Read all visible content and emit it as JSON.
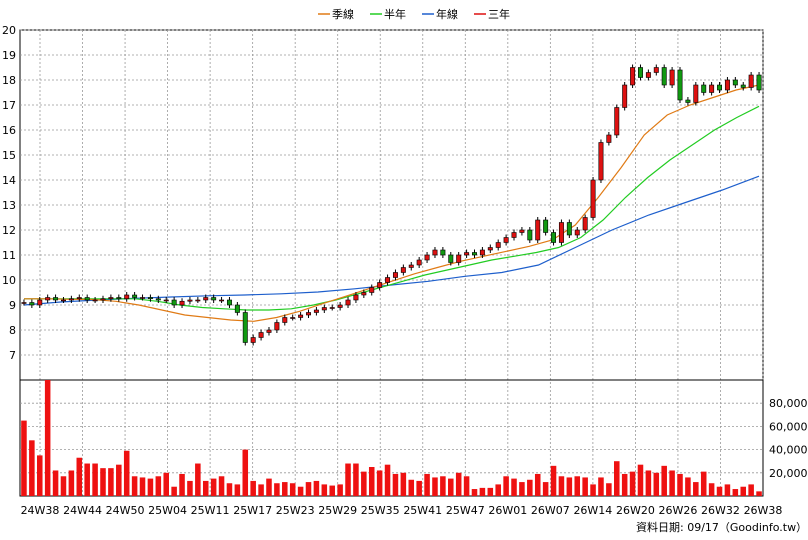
{
  "chart_data": [
    {
      "type": "candlestick",
      "legend": [
        {
          "name": "季線",
          "color": "#E07B16"
        },
        {
          "name": "半年",
          "color": "#22CC22"
        },
        {
          "name": "年線",
          "color": "#1E5FCC"
        },
        {
          "name": "三年",
          "color": "#DD1111"
        }
      ],
      "ylim": [
        6,
        20
      ],
      "yticks": [
        7,
        8,
        9,
        10,
        11,
        12,
        13,
        14,
        15,
        16,
        17,
        18,
        19,
        20
      ],
      "xticks": [
        "24W38",
        "24W44",
        "24W50",
        "25W04",
        "25W11",
        "25W17",
        "25W23",
        "25W29",
        "25W35",
        "25W41",
        "25W47",
        "26W01",
        "26W07",
        "26W14",
        "26W20",
        "26W26",
        "26W32",
        "26W38"
      ],
      "grid": true,
      "close": [
        9.1,
        9.0,
        9.2,
        9.3,
        9.2,
        9.2,
        9.25,
        9.3,
        9.2,
        9.2,
        9.25,
        9.3,
        9.25,
        9.4,
        9.3,
        9.3,
        9.25,
        9.2,
        9.2,
        9.0,
        9.15,
        9.2,
        9.2,
        9.3,
        9.2,
        9.2,
        9.0,
        8.7,
        7.5,
        7.7,
        7.9,
        8.0,
        8.3,
        8.5,
        8.5,
        8.6,
        8.7,
        8.8,
        8.9,
        8.9,
        9.0,
        9.2,
        9.4,
        9.5,
        9.7,
        9.9,
        10.1,
        10.3,
        10.5,
        10.6,
        10.8,
        11.0,
        11.2,
        11.0,
        10.7,
        11.0,
        11.1,
        11.0,
        11.2,
        11.3,
        11.5,
        11.7,
        11.9,
        12.0,
        11.6,
        12.4,
        11.9,
        11.5,
        12.3,
        11.8,
        12.0,
        12.5,
        14.0,
        15.5,
        15.8,
        16.9,
        17.8,
        18.5,
        18.1,
        18.3,
        18.5,
        17.8,
        18.4,
        17.2,
        17.1,
        17.8,
        17.5,
        17.8,
        17.6,
        18.0,
        17.8,
        17.7,
        18.2,
        17.6
      ],
      "volume": [
        65000,
        48000,
        35000,
        100000,
        22000,
        17000,
        22000,
        33000,
        28000,
        28000,
        24000,
        24000,
        27000,
        39000,
        17000,
        16000,
        15000,
        17000,
        20000,
        8000,
        19000,
        13000,
        28000,
        13000,
        15000,
        17000,
        11000,
        10000,
        40000,
        13000,
        10000,
        15000,
        11000,
        12000,
        11000,
        8000,
        12000,
        13000,
        10000,
        9000,
        10000,
        28000,
        28000,
        21000,
        25000,
        22000,
        27000,
        19000,
        20000,
        14000,
        13000,
        19000,
        16000,
        17000,
        15000,
        20000,
        17000,
        6000,
        7000,
        7000,
        10000,
        17000,
        15000,
        12000,
        14000,
        19000,
        12000,
        26000,
        17000,
        16000,
        17000,
        16000,
        10000,
        16000,
        11000,
        30000,
        19000,
        21000,
        27000,
        22000,
        20000,
        26000,
        22000,
        19000,
        16000,
        12000,
        21000,
        11000,
        8000,
        10000,
        6000,
        8000,
        10000,
        4000
      ],
      "ma_quarter": [
        9.25,
        9.25,
        9.23,
        9.22,
        9.15,
        9.0,
        8.8,
        8.6,
        8.5,
        8.4,
        8.35,
        8.5,
        8.75,
        9.05,
        9.35,
        9.65,
        9.95,
        10.25,
        10.5,
        10.75,
        10.95,
        11.15,
        11.35,
        11.6,
        12.2,
        13.3,
        14.5,
        15.8,
        16.6,
        17.0,
        17.3,
        17.6,
        17.8
      ],
      "ma_half": [
        9.25,
        9.25,
        9.25,
        9.25,
        9.25,
        9.25,
        9.15,
        9.0,
        8.9,
        8.85,
        8.8,
        8.8,
        8.85,
        9.0,
        9.2,
        9.45,
        9.7,
        9.95,
        10.2,
        10.4,
        10.6,
        10.8,
        10.95,
        11.1,
        11.3,
        11.7,
        12.4,
        13.3,
        14.1,
        14.8,
        15.4,
        16.0,
        16.5,
        16.95
      ],
      "ma_year": [
        9.0,
        9.12,
        9.2,
        9.27,
        9.32,
        9.37,
        9.4,
        9.45,
        9.52,
        9.65,
        9.8,
        9.95,
        10.15,
        10.3,
        10.6,
        11.3,
        12.0,
        12.6,
        13.1,
        13.6,
        14.15
      ],
      "yaxis_volume": {
        "ylim": [
          0,
          100000
        ],
        "ticks": [
          "20,000",
          "40,000",
          "60,000",
          "80,000"
        ]
      },
      "footer": "資料日期: 09/17（Goodinfo.tw）"
    }
  ]
}
